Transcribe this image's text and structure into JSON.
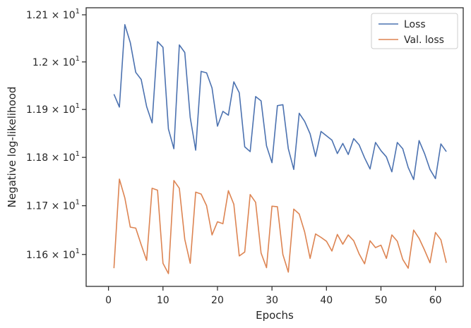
{
  "chart_data": {
    "type": "line",
    "xlabel": "Epochs",
    "ylabel": "Negative log-likelihood",
    "yscale": "log",
    "xlim": [
      -4.1,
      65.1
    ],
    "ylim": [
      11.535,
      12.115
    ],
    "xticks": [
      0,
      10,
      20,
      30,
      40,
      50,
      60
    ],
    "yticks": [
      {
        "value": 11.6,
        "mantissa": "1.16",
        "exponent": "1"
      },
      {
        "value": 11.7,
        "mantissa": "1.17",
        "exponent": "1"
      },
      {
        "value": 11.8,
        "mantissa": "1.18",
        "exponent": "1"
      },
      {
        "value": 11.9,
        "mantissa": "1.19",
        "exponent": "1"
      },
      {
        "value": 12.0,
        "mantissa": "1.2",
        "exponent": "1"
      },
      {
        "value": 12.1,
        "mantissa": "1.21",
        "exponent": "1"
      }
    ],
    "times": "×",
    "base": "10",
    "grid": false,
    "legend_position": "top-right",
    "x": [
      1,
      2,
      3,
      4,
      5,
      6,
      7,
      8,
      9,
      10,
      11,
      12,
      13,
      14,
      15,
      16,
      17,
      18,
      19,
      20,
      21,
      22,
      23,
      24,
      25,
      26,
      27,
      28,
      29,
      30,
      31,
      32,
      33,
      34,
      35,
      36,
      37,
      38,
      39,
      40,
      41,
      42,
      43,
      44,
      45,
      46,
      47,
      48,
      49,
      50,
      51,
      52,
      53,
      54,
      55,
      56,
      57,
      58,
      59,
      60,
      61,
      62
    ],
    "series": [
      {
        "name": "Loss",
        "color": "#4c72b0",
        "values": [
          11.932,
          11.905,
          12.079,
          12.041,
          11.978,
          11.963,
          11.906,
          11.872,
          12.043,
          12.031,
          11.859,
          11.818,
          12.036,
          12.02,
          11.883,
          11.815,
          11.98,
          11.977,
          11.945,
          11.865,
          11.896,
          11.888,
          11.958,
          11.935,
          11.822,
          11.812,
          11.927,
          11.918,
          11.824,
          11.789,
          11.908,
          11.91,
          11.818,
          11.775,
          11.892,
          11.875,
          11.849,
          11.802,
          11.854,
          11.845,
          11.836,
          11.808,
          11.829,
          11.806,
          11.839,
          11.826,
          11.799,
          11.776,
          11.831,
          11.814,
          11.801,
          11.77,
          11.831,
          11.818,
          11.779,
          11.754,
          11.835,
          11.808,
          11.775,
          11.756,
          11.828,
          11.812
        ]
      },
      {
        "name": "Val. loss",
        "color": "#dd8452",
        "values": [
          11.572,
          11.755,
          11.716,
          11.656,
          11.654,
          11.62,
          11.588,
          11.736,
          11.732,
          11.582,
          11.561,
          11.752,
          11.736,
          11.631,
          11.582,
          11.728,
          11.724,
          11.7,
          11.64,
          11.667,
          11.663,
          11.731,
          11.703,
          11.597,
          11.605,
          11.723,
          11.707,
          11.603,
          11.573,
          11.699,
          11.698,
          11.6,
          11.564,
          11.693,
          11.683,
          11.646,
          11.592,
          11.642,
          11.635,
          11.627,
          11.607,
          11.641,
          11.621,
          11.64,
          11.628,
          11.601,
          11.581,
          11.628,
          11.614,
          11.619,
          11.592,
          11.64,
          11.627,
          11.59,
          11.572,
          11.65,
          11.633,
          11.609,
          11.583,
          11.645,
          11.63,
          11.583
        ]
      }
    ]
  }
}
